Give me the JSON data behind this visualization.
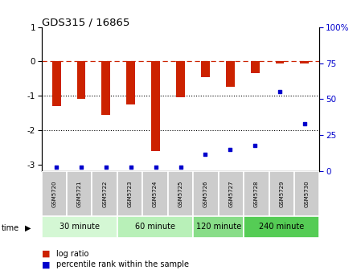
{
  "title": "GDS315 / 16865",
  "samples": [
    "GSM5720",
    "GSM5721",
    "GSM5722",
    "GSM5723",
    "GSM5724",
    "GSM5725",
    "GSM5726",
    "GSM5727",
    "GSM5728",
    "GSM5729",
    "GSM5730"
  ],
  "log_ratio": [
    -1.3,
    -1.1,
    -1.55,
    -1.25,
    -2.6,
    -1.05,
    -0.45,
    -0.75,
    -0.35,
    -0.05,
    -0.05
  ],
  "percentile": [
    3,
    3,
    3,
    3,
    3,
    3,
    12,
    15,
    18,
    55,
    33
  ],
  "groups": [
    {
      "label": "30 minute",
      "start": 0,
      "end": 3,
      "color": "#d4f7d4"
    },
    {
      "label": "60 minute",
      "start": 3,
      "end": 6,
      "color": "#b8f0b8"
    },
    {
      "label": "120 minute",
      "start": 6,
      "end": 8,
      "color": "#88dd88"
    },
    {
      "label": "240 minute",
      "start": 8,
      "end": 11,
      "color": "#55cc55"
    }
  ],
  "bar_color": "#cc2200",
  "percentile_color": "#0000cc",
  "ylim_left": [
    -3.2,
    1.0
  ],
  "ylim_right": [
    0,
    100
  ],
  "yticks_left": [
    1,
    0,
    -1,
    -2,
    -3
  ],
  "yticks_right": [
    0,
    25,
    50,
    75,
    100
  ],
  "dashed_color": "#cc2200",
  "bar_width": 0.35,
  "fig_width": 4.49,
  "fig_height": 3.36,
  "dpi": 100
}
